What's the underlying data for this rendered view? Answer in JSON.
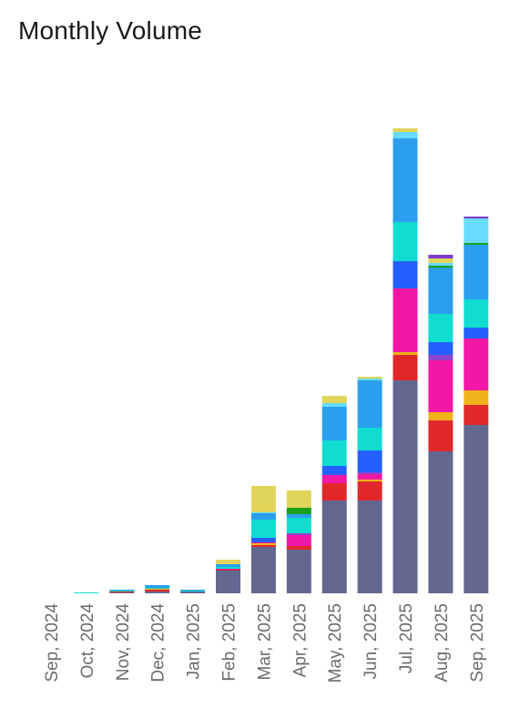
{
  "chart_data": {
    "type": "bar",
    "stacked": true,
    "title": "Monthly Volume",
    "xlabel": "",
    "ylabel": "",
    "ylim": [
      0,
      520
    ],
    "grid": false,
    "legend": "none",
    "categories": [
      "Sep, 2024",
      "Oct, 2024",
      "Nov, 2024",
      "Dec, 2024",
      "Jan, 2025",
      "Feb, 2025",
      "Mar, 2025",
      "Apr, 2025",
      "May, 2025",
      "Jun, 2025",
      "Jul, 2025",
      "Aug, 2025",
      "Sep, 2025"
    ],
    "series": [
      {
        "color": "#626890",
        "values": [
          0,
          0,
          1,
          2,
          2,
          25,
          51,
          48,
          102,
          102,
          234,
          156,
          185
        ]
      },
      {
        "color": "#e0282a",
        "values": [
          0,
          0,
          1,
          2,
          0,
          1,
          2,
          4,
          19,
          21,
          28,
          34,
          22
        ]
      },
      {
        "color": "#f0b21a",
        "values": [
          0,
          0,
          0,
          1,
          0,
          0,
          2,
          0,
          0,
          2,
          3,
          9,
          16
        ]
      },
      {
        "color": "#f217a6",
        "values": [
          0,
          0,
          0,
          0,
          0,
          1,
          1,
          12,
          9,
          6,
          70,
          57,
          57
        ]
      },
      {
        "color": "#8e44ce",
        "values": [
          0,
          0,
          0,
          0,
          0,
          0,
          0,
          2,
          0,
          2,
          0,
          6,
          0
        ]
      },
      {
        "color": "#2560ff",
        "values": [
          0,
          0,
          0,
          0,
          0,
          0,
          5,
          0,
          10,
          24,
          30,
          14,
          12
        ]
      },
      {
        "color": "#10ddd0",
        "values": [
          0,
          1,
          1,
          1,
          1,
          2,
          20,
          17,
          28,
          25,
          43,
          31,
          31
        ]
      },
      {
        "color": "#2b9fee",
        "values": [
          0,
          0,
          1,
          3,
          1,
          3,
          7,
          4,
          37,
          52,
          92,
          51,
          60
        ]
      },
      {
        "color": "#1aa01a",
        "values": [
          0,
          0,
          0,
          0,
          0,
          0,
          0,
          7,
          0,
          0,
          0,
          2,
          2
        ]
      },
      {
        "color": "#68dcff",
        "values": [
          0,
          0,
          0,
          0,
          0,
          0,
          1,
          0,
          4,
          2,
          7,
          3,
          27
        ]
      },
      {
        "color": "#e0d45a",
        "values": [
          0,
          0,
          0,
          0,
          0,
          5,
          29,
          19,
          8,
          2,
          4,
          5,
          0
        ]
      },
      {
        "color": "#7a3ad0",
        "values": [
          0,
          0,
          0,
          0,
          0,
          0,
          0,
          0,
          0,
          0,
          0,
          4,
          2
        ]
      }
    ]
  }
}
